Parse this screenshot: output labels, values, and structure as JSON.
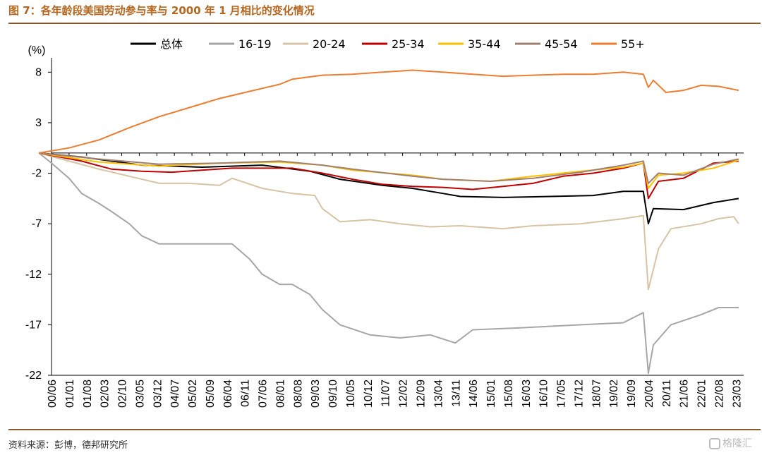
{
  "header": {
    "title": "图 7：各年龄段美国劳动参与率与 2000 年 1 月相比的变化情况"
  },
  "footer": {
    "source": "资料来源：彭博，德邦研究所",
    "watermark": "格隆汇"
  },
  "colors": {
    "header": "#b5651d",
    "rule": "#8b5a2b"
  },
  "chart_data": {
    "type": "line",
    "title": "",
    "ylabel": "(%)",
    "xlabel": "",
    "ylim": [
      -22,
      9
    ],
    "xlim": [
      "2000-06",
      "2023-06"
    ],
    "yticks": [
      8,
      3,
      -2,
      -7,
      -12,
      -17,
      -22
    ],
    "xtick_labels": [
      "00/06",
      "01/01",
      "01/08",
      "02/03",
      "02/10",
      "03/05",
      "03/12",
      "04/07",
      "05/02",
      "05/09",
      "06/04",
      "06/11",
      "07/06",
      "08/01",
      "08/08",
      "09/03",
      "09/10",
      "10/05",
      "10/12",
      "11/07",
      "12/02",
      "12/09",
      "13/04",
      "13/11",
      "14/06",
      "15/01",
      "15/08",
      "16/03",
      "16/10",
      "17/05",
      "17/12",
      "18/07",
      "19/02",
      "19/09",
      "20/04",
      "20/11",
      "21/06",
      "22/01",
      "22/08",
      "23/03"
    ],
    "legend_position": "top",
    "grid": false,
    "series": [
      {
        "name": "总体",
        "color": "#000000",
        "points": [
          [
            "2000-01",
            0
          ],
          [
            "2001-06",
            -0.4
          ],
          [
            "2003-06",
            -1.2
          ],
          [
            "2005-06",
            -1.4
          ],
          [
            "2007-06",
            -1.2
          ],
          [
            "2009-01",
            -1.8
          ],
          [
            "2010-01",
            -2.6
          ],
          [
            "2011-06",
            -3.2
          ],
          [
            "2012-06",
            -3.5
          ],
          [
            "2013-06",
            -4.0
          ],
          [
            "2014-01",
            -4.3
          ],
          [
            "2015-06",
            -4.4
          ],
          [
            "2017-01",
            -4.3
          ],
          [
            "2018-06",
            -4.2
          ],
          [
            "2019-06",
            -3.8
          ],
          [
            "2020-02",
            -3.8
          ],
          [
            "2020-04",
            -7.0
          ],
          [
            "2020-06",
            -5.5
          ],
          [
            "2021-06",
            -5.6
          ],
          [
            "2022-06",
            -4.9
          ],
          [
            "2023-04",
            -4.5
          ]
        ]
      },
      {
        "name": "16-19",
        "color": "#a6a6a6",
        "points": [
          [
            "2000-01",
            0
          ],
          [
            "2000-06",
            -1.0
          ],
          [
            "2001-01",
            -2.5
          ],
          [
            "2001-06",
            -4.0
          ],
          [
            "2002-01",
            -5.0
          ],
          [
            "2002-06",
            -5.8
          ],
          [
            "2003-01",
            -7.0
          ],
          [
            "2003-06",
            -8.2
          ],
          [
            "2004-01",
            -9.0
          ],
          [
            "2005-01",
            -9.0
          ],
          [
            "2006-01",
            -9.0
          ],
          [
            "2006-06",
            -9.0
          ],
          [
            "2007-01",
            -10.5
          ],
          [
            "2007-06",
            -12.0
          ],
          [
            "2008-01",
            -13.0
          ],
          [
            "2008-06",
            -13.0
          ],
          [
            "2009-01",
            -14.0
          ],
          [
            "2009-06",
            -15.5
          ],
          [
            "2010-01",
            -17.0
          ],
          [
            "2011-01",
            -18.0
          ],
          [
            "2012-01",
            -18.3
          ],
          [
            "2013-01",
            -18.0
          ],
          [
            "2013-11",
            -18.8
          ],
          [
            "2014-06",
            -17.5
          ],
          [
            "2016-01",
            -17.3
          ],
          [
            "2018-01",
            -17.0
          ],
          [
            "2019-06",
            -16.8
          ],
          [
            "2020-02",
            -15.8
          ],
          [
            "2020-04",
            -21.8
          ],
          [
            "2020-06",
            -19.0
          ],
          [
            "2021-01",
            -17.0
          ],
          [
            "2022-01",
            -16.0
          ],
          [
            "2022-08",
            -15.3
          ],
          [
            "2023-04",
            -15.3
          ]
        ]
      },
      {
        "name": "20-24",
        "color": "#d8c3a5",
        "points": [
          [
            "2000-01",
            0
          ],
          [
            "2001-01",
            -0.8
          ],
          [
            "2002-01",
            -1.6
          ],
          [
            "2003-01",
            -2.3
          ],
          [
            "2004-01",
            -3.0
          ],
          [
            "2005-01",
            -3.0
          ],
          [
            "2006-01",
            -3.2
          ],
          [
            "2006-06",
            -2.5
          ],
          [
            "2007-06",
            -3.5
          ],
          [
            "2008-06",
            -4.0
          ],
          [
            "2009-03",
            -4.2
          ],
          [
            "2009-06",
            -5.5
          ],
          [
            "2010-01",
            -6.8
          ],
          [
            "2011-01",
            -6.6
          ],
          [
            "2012-01",
            -7.0
          ],
          [
            "2013-01",
            -7.3
          ],
          [
            "2014-01",
            -7.2
          ],
          [
            "2015-06",
            -7.5
          ],
          [
            "2016-06",
            -7.2
          ],
          [
            "2018-01",
            -7.0
          ],
          [
            "2019-06",
            -6.5
          ],
          [
            "2020-02",
            -6.2
          ],
          [
            "2020-04",
            -13.5
          ],
          [
            "2020-08",
            -9.5
          ],
          [
            "2021-01",
            -7.5
          ],
          [
            "2022-01",
            -7.0
          ],
          [
            "2022-08",
            -6.5
          ],
          [
            "2023-02",
            -6.3
          ],
          [
            "2023-04",
            -7.0
          ]
        ]
      },
      {
        "name": "25-34",
        "color": "#c00000",
        "points": [
          [
            "2000-01",
            0
          ],
          [
            "2001-06",
            -0.8
          ],
          [
            "2002-06",
            -1.6
          ],
          [
            "2003-06",
            -1.8
          ],
          [
            "2004-06",
            -1.9
          ],
          [
            "2006-06",
            -1.5
          ],
          [
            "2008-06",
            -1.5
          ],
          [
            "2009-06",
            -2.0
          ],
          [
            "2010-06",
            -2.6
          ],
          [
            "2011-06",
            -3.1
          ],
          [
            "2012-06",
            -3.3
          ],
          [
            "2013-06",
            -3.4
          ],
          [
            "2014-06",
            -3.6
          ],
          [
            "2015-06",
            -3.3
          ],
          [
            "2016-06",
            -3.0
          ],
          [
            "2017-06",
            -2.3
          ],
          [
            "2018-06",
            -2.0
          ],
          [
            "2019-06",
            -1.5
          ],
          [
            "2020-02",
            -1.0
          ],
          [
            "2020-04",
            -4.5
          ],
          [
            "2020-08",
            -2.8
          ],
          [
            "2021-06",
            -2.5
          ],
          [
            "2022-06",
            -1.0
          ],
          [
            "2023-04",
            -0.8
          ]
        ]
      },
      {
        "name": "35-44",
        "color": "#ffc000",
        "points": [
          [
            "2000-01",
            0
          ],
          [
            "2002-01",
            -0.9
          ],
          [
            "2004-01",
            -1.3
          ],
          [
            "2006-01",
            -1.0
          ],
          [
            "2008-01",
            -0.9
          ],
          [
            "2009-06",
            -1.2
          ],
          [
            "2010-06",
            -1.7
          ],
          [
            "2012-06",
            -2.2
          ],
          [
            "2013-06",
            -2.6
          ],
          [
            "2015-01",
            -2.8
          ],
          [
            "2016-06",
            -2.3
          ],
          [
            "2018-01",
            -1.8
          ],
          [
            "2019-06",
            -1.4
          ],
          [
            "2020-02",
            -1.0
          ],
          [
            "2020-04",
            -3.5
          ],
          [
            "2020-08",
            -2.2
          ],
          [
            "2021-06",
            -2.0
          ],
          [
            "2022-06",
            -1.5
          ],
          [
            "2023-04",
            -0.7
          ]
        ]
      },
      {
        "name": "45-54",
        "color": "#a08070",
        "points": [
          [
            "2000-01",
            0
          ],
          [
            "2002-01",
            -0.6
          ],
          [
            "2004-01",
            -1.1
          ],
          [
            "2006-01",
            -1.0
          ],
          [
            "2008-01",
            -0.8
          ],
          [
            "2009-06",
            -1.2
          ],
          [
            "2010-06",
            -1.6
          ],
          [
            "2012-06",
            -2.3
          ],
          [
            "2013-06",
            -2.6
          ],
          [
            "2015-01",
            -2.8
          ],
          [
            "2016-06",
            -2.5
          ],
          [
            "2018-01",
            -1.9
          ],
          [
            "2019-06",
            -1.2
          ],
          [
            "2020-02",
            -0.8
          ],
          [
            "2020-04",
            -3.0
          ],
          [
            "2020-08",
            -2.0
          ],
          [
            "2021-06",
            -2.2
          ],
          [
            "2022-06",
            -1.1
          ],
          [
            "2023-04",
            -0.6
          ]
        ]
      },
      {
        "name": "55+",
        "color": "#ed7d31",
        "points": [
          [
            "2000-01",
            0
          ],
          [
            "2001-01",
            0.5
          ],
          [
            "2002-01",
            1.3
          ],
          [
            "2003-01",
            2.5
          ],
          [
            "2004-01",
            3.6
          ],
          [
            "2005-01",
            4.5
          ],
          [
            "2006-01",
            5.4
          ],
          [
            "2007-01",
            6.1
          ],
          [
            "2008-01",
            6.8
          ],
          [
            "2008-06",
            7.3
          ],
          [
            "2009-06",
            7.7
          ],
          [
            "2010-06",
            7.8
          ],
          [
            "2011-06",
            8.0
          ],
          [
            "2012-06",
            8.2
          ],
          [
            "2013-06",
            8.0
          ],
          [
            "2014-06",
            7.8
          ],
          [
            "2015-06",
            7.6
          ],
          [
            "2016-06",
            7.7
          ],
          [
            "2017-06",
            7.8
          ],
          [
            "2018-06",
            7.8
          ],
          [
            "2019-06",
            8.0
          ],
          [
            "2020-02",
            7.8
          ],
          [
            "2020-04",
            6.5
          ],
          [
            "2020-06",
            7.2
          ],
          [
            "2020-11",
            6.0
          ],
          [
            "2021-06",
            6.2
          ],
          [
            "2022-01",
            6.7
          ],
          [
            "2022-08",
            6.6
          ],
          [
            "2023-04",
            6.2
          ]
        ]
      }
    ]
  }
}
